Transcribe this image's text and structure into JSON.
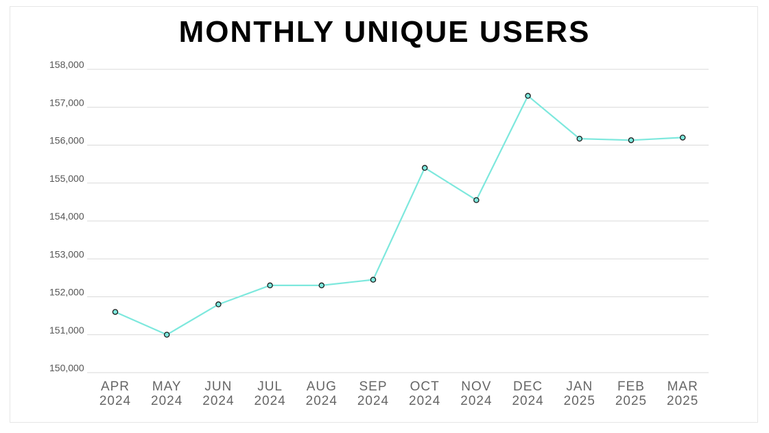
{
  "chart_data": {
    "type": "line",
    "title": "MONTHLY UNIQUE USERS",
    "xlabel": "",
    "ylabel": "",
    "categories": [
      [
        "APR",
        "2024"
      ],
      [
        "MAY",
        "2024"
      ],
      [
        "JUN",
        "2024"
      ],
      [
        "JUL",
        "2024"
      ],
      [
        "AUG",
        "2024"
      ],
      [
        "SEP",
        "2024"
      ],
      [
        "OCT",
        "2024"
      ],
      [
        "NOV",
        "2024"
      ],
      [
        "DEC",
        "2024"
      ],
      [
        "JAN",
        "2025"
      ],
      [
        "FEB",
        "2025"
      ],
      [
        "MAR",
        "2025"
      ]
    ],
    "series": [
      {
        "values": [
          151600,
          151000,
          151800,
          152300,
          152300,
          152450,
          155400,
          154550,
          157300,
          156170,
          156130,
          156200
        ]
      }
    ],
    "ylim": [
      150000,
      158000
    ],
    "yticks": [
      150000,
      151000,
      152000,
      153000,
      154000,
      155000,
      156000,
      157000,
      158000
    ],
    "ytick_labels": [
      "150,000",
      "151,000",
      "152,000",
      "153,000",
      "154,000",
      "155,000",
      "156,000",
      "157,000",
      "158,000"
    ],
    "grid": true,
    "line_color": "#7DE8DD",
    "marker_fill": "#7DE8DD",
    "marker_stroke": "#1a1a1a"
  }
}
